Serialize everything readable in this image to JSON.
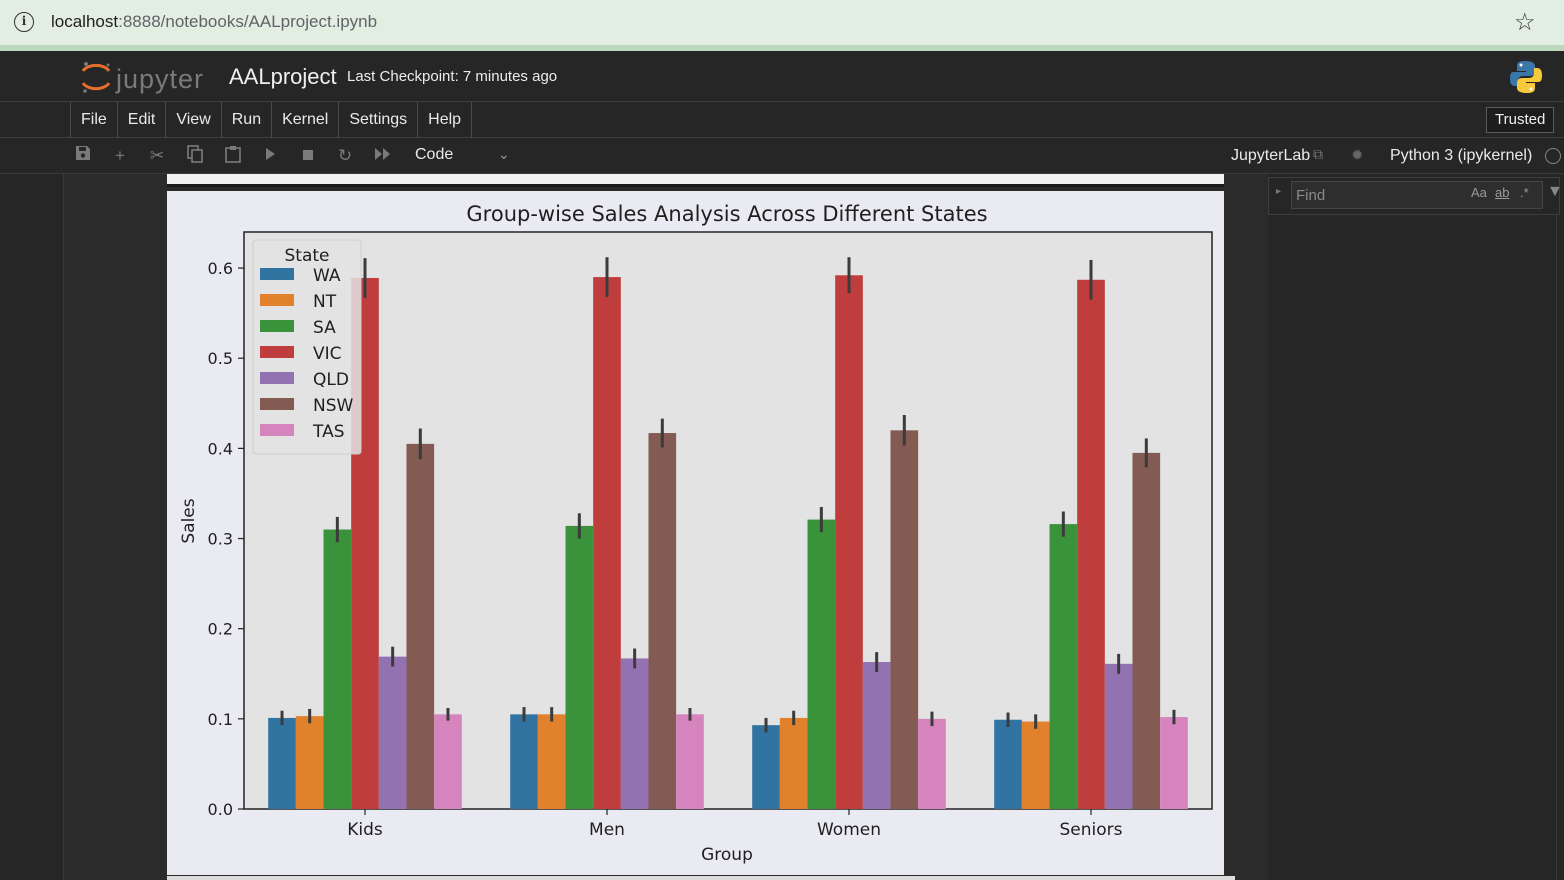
{
  "browser": {
    "url_host": "localhost",
    "url_path": ":8888/notebooks/AALproject.ipynb"
  },
  "header": {
    "logo_text": "jupyter",
    "notebook_title": "AALproject",
    "checkpoint": "Last Checkpoint: 7 minutes ago"
  },
  "menu": {
    "items": [
      {
        "label": "File"
      },
      {
        "label": "Edit"
      },
      {
        "label": "View"
      },
      {
        "label": "Run"
      },
      {
        "label": "Kernel"
      },
      {
        "label": "Settings"
      },
      {
        "label": "Help"
      }
    ],
    "trusted": "Trusted"
  },
  "toolbar": {
    "icons": [
      "save-icon",
      "add-cell-icon",
      "cut-icon",
      "copy-icon",
      "paste-icon",
      "run-icon",
      "stop-icon",
      "restart-icon",
      "fast-forward-icon"
    ],
    "cell_type": "Code",
    "jupyterlab_label": "JupyterLab",
    "kernel_name": "Python 3 (ipykernel)"
  },
  "find": {
    "placeholder": "Find",
    "options": [
      "Aa",
      "ab",
      ".*"
    ]
  },
  "chart_data": {
    "type": "bar",
    "title": "Group-wise Sales Analysis Across Different States",
    "xlabel": "Group",
    "ylabel": "Sales",
    "ylim": [
      0,
      0.64
    ],
    "yticks": [
      "0.0",
      "0.1",
      "0.2",
      "0.3",
      "0.4",
      "0.5",
      "0.6"
    ],
    "categories": [
      "Kids",
      "Men",
      "Women",
      "Seniors"
    ],
    "legend": {
      "title": "State",
      "placement": "upper left"
    },
    "series": [
      {
        "name": "WA",
        "color": "#3274a1",
        "values": [
          0.101,
          0.105,
          0.093,
          0.099
        ],
        "err": [
          0.008,
          0.008,
          0.008,
          0.008
        ]
      },
      {
        "name": "NT",
        "color": "#e1812c",
        "values": [
          0.103,
          0.105,
          0.101,
          0.097
        ],
        "err": [
          0.008,
          0.008,
          0.008,
          0.008
        ]
      },
      {
        "name": "SA",
        "color": "#3a923a",
        "values": [
          0.31,
          0.314,
          0.321,
          0.316
        ],
        "err": [
          0.014,
          0.014,
          0.014,
          0.014
        ]
      },
      {
        "name": "VIC",
        "color": "#c03d3e",
        "values": [
          0.589,
          0.59,
          0.592,
          0.587
        ],
        "err": [
          0.022,
          0.022,
          0.02,
          0.022
        ]
      },
      {
        "name": "QLD",
        "color": "#9372b2",
        "values": [
          0.169,
          0.167,
          0.163,
          0.161
        ],
        "err": [
          0.011,
          0.011,
          0.011,
          0.011
        ]
      },
      {
        "name": "NSW",
        "color": "#845b53",
        "values": [
          0.405,
          0.417,
          0.42,
          0.395
        ],
        "err": [
          0.017,
          0.016,
          0.017,
          0.016
        ]
      },
      {
        "name": "TAS",
        "color": "#d684bd",
        "values": [
          0.105,
          0.105,
          0.1,
          0.102
        ],
        "err": [
          0.007,
          0.007,
          0.008,
          0.008
        ]
      }
    ]
  }
}
